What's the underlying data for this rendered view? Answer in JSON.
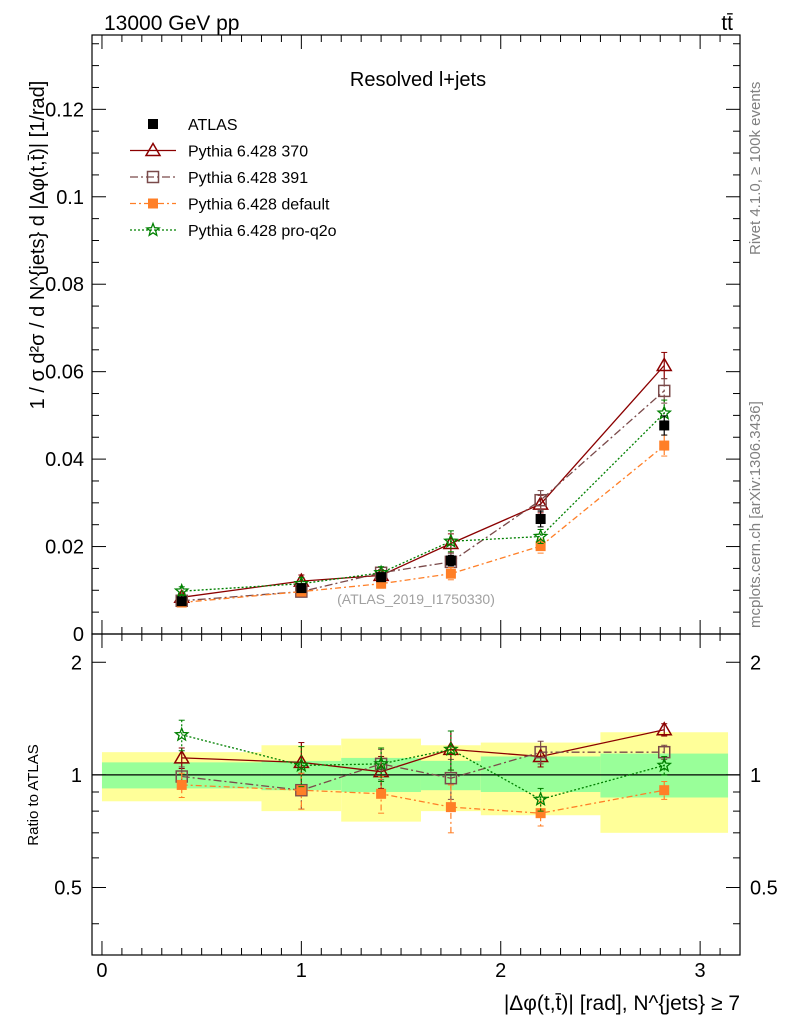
{
  "header": {
    "left": "13000 GeV pp",
    "right": "tt̄"
  },
  "side_labels": {
    "rivet": "Rivet 4.1.0, ≥ 100k events",
    "mcplots": "mcplots.cern.ch [arXiv:1306.3436]"
  },
  "colors": {
    "atlas": "#000000",
    "p370": "#8b0000",
    "p391": "#7a4a4a",
    "pdefault": "#ff7f27",
    "pq2o": "#008000",
    "band_green": "#99ff99",
    "band_yellow": "#ffff99"
  },
  "chart_data": [
    {
      "type": "scatter",
      "title": "Resolved l+jets",
      "watermark": "(ATLAS_2019_I1750330)",
      "ylabel": "1 / σ d²σ / d N^{jets} d |Δφ(t,t̄)| [1/rad]",
      "xlabel": "",
      "xlim": [
        -0.05,
        3.2
      ],
      "ylim": [
        0,
        0.137
      ],
      "yticks": [
        0,
        0.02,
        0.04,
        0.06,
        0.08,
        0.1,
        0.12
      ],
      "ytick_labels": [
        "0",
        "0.02",
        "0.04",
        "0.06",
        "0.08",
        "0.1",
        "0.12"
      ],
      "x": [
        0.4,
        1.0,
        1.4,
        1.75,
        2.2,
        2.82
      ],
      "series": [
        {
          "name": "ATLAS",
          "key": "atlas",
          "values": [
            0.0075,
            0.0105,
            0.013,
            0.0168,
            0.0263,
            0.0477
          ],
          "errors": [
            0.0006,
            0.0008,
            0.001,
            0.0012,
            0.0018,
            0.0022
          ]
        },
        {
          "name": "Pythia 6.428 370",
          "key": "p370",
          "values": [
            0.0084,
            0.0121,
            0.0134,
            0.0207,
            0.0297,
            0.0614
          ],
          "errors": [
            0.0008,
            0.0014,
            0.0013,
            0.0022,
            0.002,
            0.003
          ]
        },
        {
          "name": "Pythia 6.428 391",
          "key": "p391",
          "values": [
            0.0076,
            0.0097,
            0.014,
            0.0165,
            0.0306,
            0.0556
          ],
          "errors": [
            0.0006,
            0.001,
            0.0013,
            0.002,
            0.0022,
            0.0028
          ]
        },
        {
          "name": "Pythia 6.428 default",
          "key": "pdefault",
          "values": [
            0.0072,
            0.0097,
            0.0115,
            0.0138,
            0.0201,
            0.0431
          ],
          "errors": [
            0.0006,
            0.0008,
            0.001,
            0.0014,
            0.0016,
            0.0024
          ]
        },
        {
          "name": "Pythia 6.428 pro-q2o",
          "key": "pq2o",
          "values": [
            0.0098,
            0.0115,
            0.014,
            0.0212,
            0.0223,
            0.0505
          ],
          "errors": [
            0.001,
            0.0014,
            0.0014,
            0.0024,
            0.0016,
            0.003
          ]
        }
      ],
      "legend_position": "top-left"
    },
    {
      "type": "scatter",
      "title": "",
      "ylabel": "Ratio to ATLAS",
      "xlabel": "|Δφ(t,t̄)| [rad], N^{jets} ≥ 7",
      "xlim": [
        -0.05,
        3.2
      ],
      "ylim": [
        0.33,
        2.38
      ],
      "yticks": [
        0.5,
        1,
        2
      ],
      "ytick_labels": [
        "0.5",
        "1",
        "2"
      ],
      "xticks": [
        0,
        1,
        2,
        3
      ],
      "xtick_labels": [
        "0",
        "1",
        "2",
        "3"
      ],
      "bins": [
        {
          "lo": 0.0,
          "hi": 0.8,
          "green": [
            0.92,
            1.08
          ],
          "yellow": [
            0.85,
            1.15
          ]
        },
        {
          "lo": 0.8,
          "hi": 1.2,
          "green": [
            0.91,
            1.09
          ],
          "yellow": [
            0.8,
            1.2
          ]
        },
        {
          "lo": 1.2,
          "hi": 1.6,
          "green": [
            0.9,
            1.11
          ],
          "yellow": [
            0.75,
            1.25
          ]
        },
        {
          "lo": 1.6,
          "hi": 1.9,
          "green": [
            0.91,
            1.09
          ],
          "yellow": [
            0.8,
            1.2
          ]
        },
        {
          "lo": 1.9,
          "hi": 2.5,
          "green": [
            0.9,
            1.12
          ],
          "yellow": [
            0.78,
            1.22
          ]
        },
        {
          "lo": 2.5,
          "hi": 3.14,
          "green": [
            0.87,
            1.14
          ],
          "yellow": [
            0.7,
            1.3
          ]
        }
      ],
      "x": [
        0.4,
        1.0,
        1.4,
        1.75,
        2.2,
        2.82
      ],
      "series": [
        {
          "name": "Pythia 6.428 370",
          "key": "p370",
          "values": [
            1.11,
            1.08,
            1.02,
            1.17,
            1.12,
            1.32
          ],
          "errors": [
            0.07,
            0.14,
            0.1,
            0.14,
            0.07,
            0.05
          ]
        },
        {
          "name": "Pythia 6.428 391",
          "key": "p391",
          "values": [
            0.99,
            0.91,
            1.07,
            0.98,
            1.15,
            1.15
          ],
          "errors": [
            0.06,
            0.1,
            0.1,
            0.12,
            0.08,
            0.05
          ]
        },
        {
          "name": "Pythia 6.428 default",
          "key": "pdefault",
          "values": [
            0.94,
            0.91,
            0.89,
            0.82,
            0.79,
            0.91
          ],
          "errors": [
            0.07,
            0.1,
            0.1,
            0.12,
            0.06,
            0.05
          ]
        },
        {
          "name": "Pythia 6.428 pro-q2o",
          "key": "pq2o",
          "values": [
            1.28,
            1.06,
            1.07,
            1.17,
            0.86,
            1.06
          ],
          "errors": [
            0.12,
            0.13,
            0.11,
            0.14,
            0.06,
            0.06
          ]
        }
      ]
    }
  ]
}
